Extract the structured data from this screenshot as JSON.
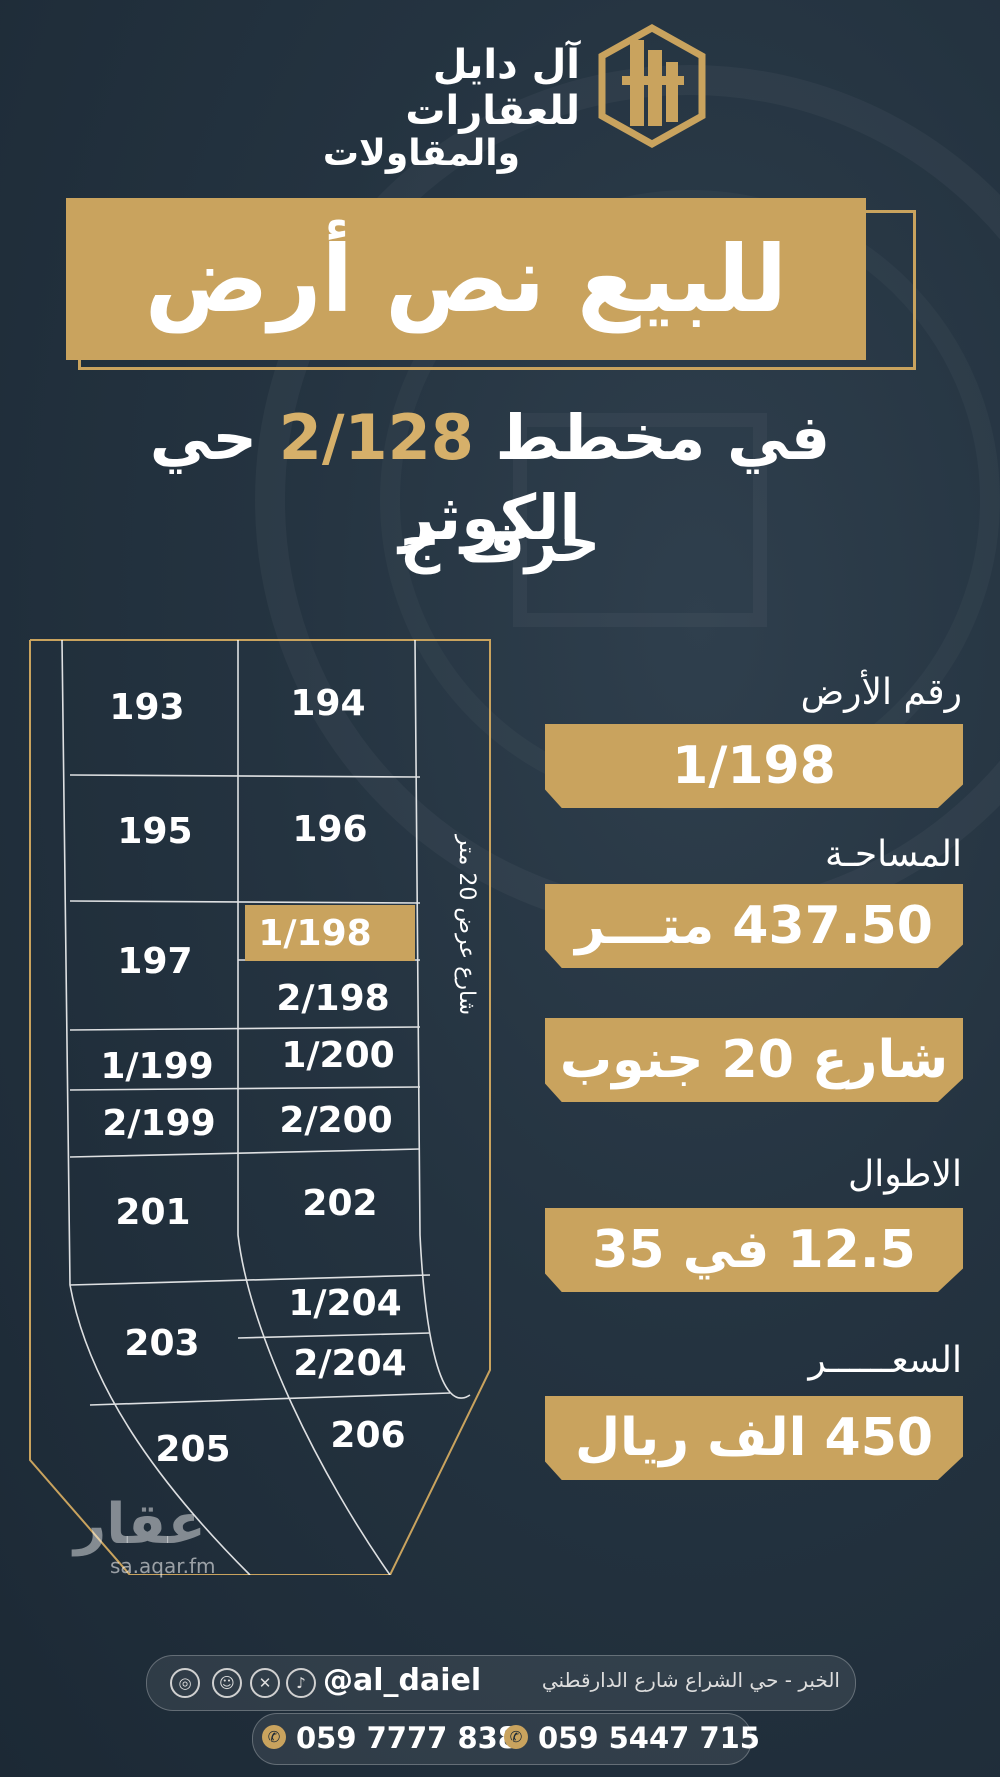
{
  "brand": {
    "line1": "آل دايل للعقارات",
    "line2": "والمقاولات"
  },
  "title": "للبيع نص أرض",
  "subtitle": {
    "part1": "في مخطط",
    "plan": "2/128",
    "part2": "حي الكوثر"
  },
  "subtitle2": "حرف ج",
  "map": {
    "street_label": "شارع عرض 20 متر",
    "plots": [
      "193",
      "194",
      "195",
      "196",
      "197",
      "1/198",
      "2/198",
      "1/199",
      "1/200",
      "2/199",
      "2/200",
      "201",
      "202",
      "203",
      "1/204",
      "2/204",
      "205",
      "206"
    ],
    "highlight": "1/198"
  },
  "details": {
    "plot_number_label": "رقم الأرض",
    "plot_number": "1/198",
    "area_label": "المساحـة",
    "area": "437.50 متـــر",
    "street": "شارع 20 جنوب",
    "dimensions_label": "الاطوال",
    "dimensions": "12.5 في 35",
    "price_label": "السعــــــر",
    "price": "450 الف ريال"
  },
  "watermark": {
    "name": "عقار",
    "url": "sa.aqar.fm"
  },
  "footer": {
    "address": "الخبر - حي الشراع شارع الدارقطني",
    "handle": "@al_daiel",
    "phone1": "059 7777 838",
    "phone2": "059 5447 715",
    "social_icons": [
      "instagram-icon",
      "snapchat-icon",
      "x-icon",
      "tiktok-icon"
    ]
  },
  "colors": {
    "gold": "#c9a35e",
    "background": "#243340"
  }
}
